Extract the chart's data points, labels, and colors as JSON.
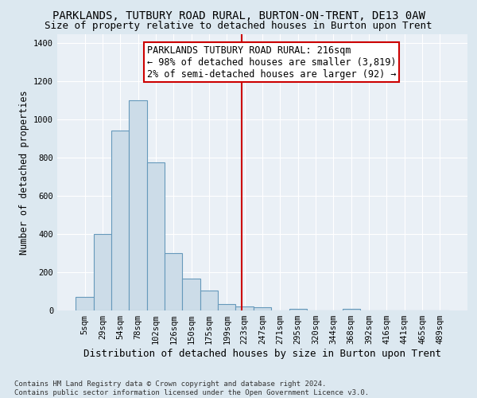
{
  "title": "PARKLANDS, TUTBURY ROAD RURAL, BURTON-ON-TRENT, DE13 0AW",
  "subtitle": "Size of property relative to detached houses in Burton upon Trent",
  "xlabel": "Distribution of detached houses by size in Burton upon Trent",
  "ylabel": "Number of detached properties",
  "footnote1": "Contains HM Land Registry data © Crown copyright and database right 2024.",
  "footnote2": "Contains public sector information licensed under the Open Government Licence v3.0.",
  "bar_labels": [
    "5sqm",
    "29sqm",
    "54sqm",
    "78sqm",
    "102sqm",
    "126sqm",
    "150sqm",
    "175sqm",
    "199sqm",
    "223sqm",
    "247sqm",
    "271sqm",
    "295sqm",
    "320sqm",
    "344sqm",
    "368sqm",
    "392sqm",
    "416sqm",
    "441sqm",
    "465sqm",
    "489sqm"
  ],
  "bar_values": [
    70,
    400,
    945,
    1100,
    775,
    300,
    168,
    105,
    35,
    20,
    17,
    0,
    10,
    0,
    0,
    10,
    0,
    0,
    0,
    0,
    0
  ],
  "bar_color": "#ccdce8",
  "bar_edgecolor": "#6699bb",
  "bar_linewidth": 0.8,
  "vline_color": "#cc0000",
  "annotation_title": "PARKLANDS TUTBURY ROAD RURAL: 216sqm",
  "annotation_line1": "← 98% of detached houses are smaller (3,819)",
  "annotation_line2": "2% of semi-detached houses are larger (92) →",
  "annotation_box_color": "#cc0000",
  "annotation_facecolor": "white",
  "ylim": [
    0,
    1450
  ],
  "yticks": [
    0,
    200,
    400,
    600,
    800,
    1000,
    1200,
    1400
  ],
  "background_color": "#dce8f0",
  "plot_background": "#eaf0f6",
  "grid_color": "white",
  "title_fontsize": 10,
  "subtitle_fontsize": 9,
  "xlabel_fontsize": 9,
  "ylabel_fontsize": 8.5,
  "tick_fontsize": 7.5,
  "annotation_fontsize": 8.5,
  "footnote_fontsize": 6.5
}
